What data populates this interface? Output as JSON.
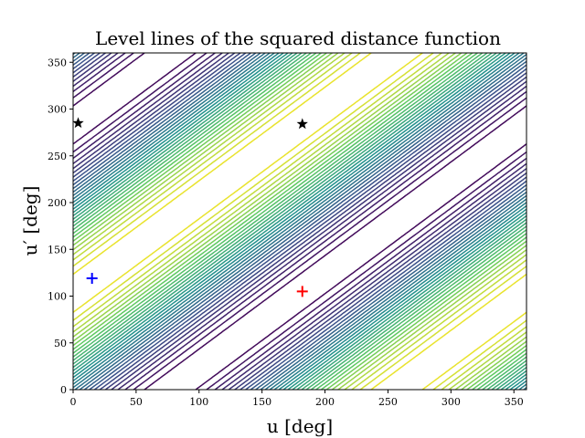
{
  "chart_data": {
    "type": "contour",
    "title": "Level lines of the squared distance function",
    "xlabel": "u [deg]",
    "ylabel": "u′ [deg]",
    "xlim": [
      0,
      360
    ],
    "ylim": [
      0,
      360
    ],
    "xticks": [
      0,
      50,
      100,
      150,
      200,
      250,
      300,
      350
    ],
    "yticks": [
      0,
      50,
      100,
      150,
      200,
      250,
      300,
      350
    ],
    "grid": false,
    "colormap": [
      "#440154",
      "#3b528b",
      "#21918c",
      "#5ec962",
      "#fde725"
    ],
    "markers": [
      {
        "name": "red plus",
        "shape": "plus",
        "color": "#ff0000",
        "x": 182,
        "y": 105
      },
      {
        "name": "blue plus",
        "shape": "plus",
        "color": "#0000ff",
        "x": 15,
        "y": 119
      },
      {
        "name": "black star",
        "shape": "star",
        "color": "#000000",
        "x": 4,
        "y": 285
      },
      {
        "name": "black star",
        "shape": "star",
        "color": "#000000",
        "x": 182,
        "y": 284
      }
    ]
  }
}
